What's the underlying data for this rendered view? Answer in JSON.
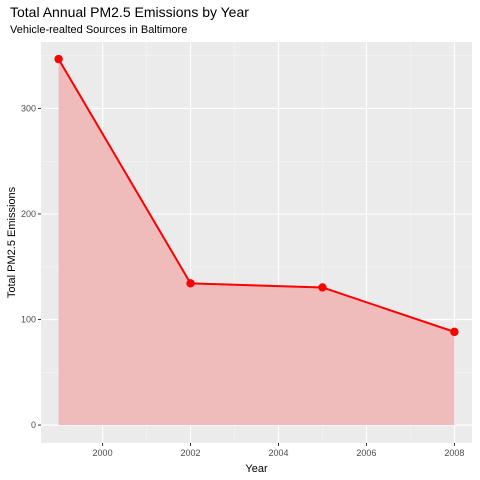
{
  "chart_data": {
    "type": "area",
    "title": "Total Annual PM2.5 Emissions by Year",
    "subtitle": "Vehicle-realted Sources in Baltimore",
    "xlabel": "Year",
    "ylabel": "Total PM2.5 Emissions",
    "x": [
      1999,
      2002,
      2005,
      2008
    ],
    "series": [
      {
        "values": [
          346.8,
          134.3,
          130.4,
          88.3
        ]
      }
    ],
    "xlim": [
      1998.6,
      2008.4
    ],
    "ylim": [
      -17,
      363
    ],
    "xticks": [
      2000,
      2002,
      2004,
      2006,
      2008
    ],
    "yticks": [
      0,
      100,
      200,
      300
    ],
    "grid": true,
    "legend": "none",
    "colors": {
      "panel_background": "#EBEBEB",
      "major_grid": "#FFFFFF",
      "minor_grid": "#F5F5F5",
      "area_fill": "#F0BBBB",
      "line": "#FF0000",
      "point": "#FF0000",
      "tick_mark": "#333333",
      "tick_label": "#4D4D4D"
    }
  }
}
